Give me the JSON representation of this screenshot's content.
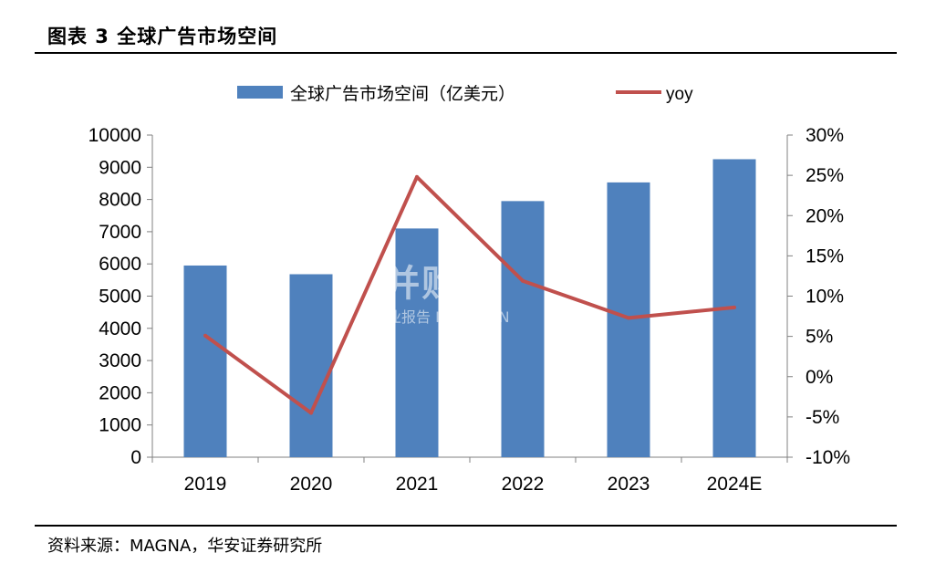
{
  "figure": {
    "title": "图表 3 全球广告市场空间",
    "source": "资料来源：MAGNA，华安证券研究所"
  },
  "watermark": {
    "main": "并购家",
    "sub": "行业报告 IPOIPO.CN"
  },
  "colors": {
    "bar": "#4f81bd",
    "line": "#c0504d",
    "axis": "#808080"
  },
  "chart_data": {
    "type": "bar",
    "categories": [
      "2019",
      "2020",
      "2021",
      "2022",
      "2023",
      "2024E"
    ],
    "series": [
      {
        "name": "全球广告市场空间（亿美元）",
        "type": "bar",
        "axis": "left",
        "values": [
          5950,
          5680,
          7100,
          7950,
          8530,
          9250
        ]
      },
      {
        "name": "yoy",
        "type": "line",
        "axis": "right",
        "values": [
          5.1,
          -4.5,
          24.8,
          11.9,
          7.3,
          8.6
        ]
      }
    ],
    "y_left": {
      "min": 0,
      "max": 10000,
      "step": 1000,
      "tick_labels": [
        "0",
        "1000",
        "2000",
        "3000",
        "4000",
        "5000",
        "6000",
        "7000",
        "8000",
        "9000",
        "10000"
      ]
    },
    "y_right": {
      "min": -10,
      "max": 30,
      "step": 5,
      "tick_labels": [
        "-10%",
        "-5%",
        "0%",
        "5%",
        "10%",
        "15%",
        "20%",
        "25%",
        "30%"
      ]
    },
    "legend_position": "top-center",
    "grid": false
  }
}
